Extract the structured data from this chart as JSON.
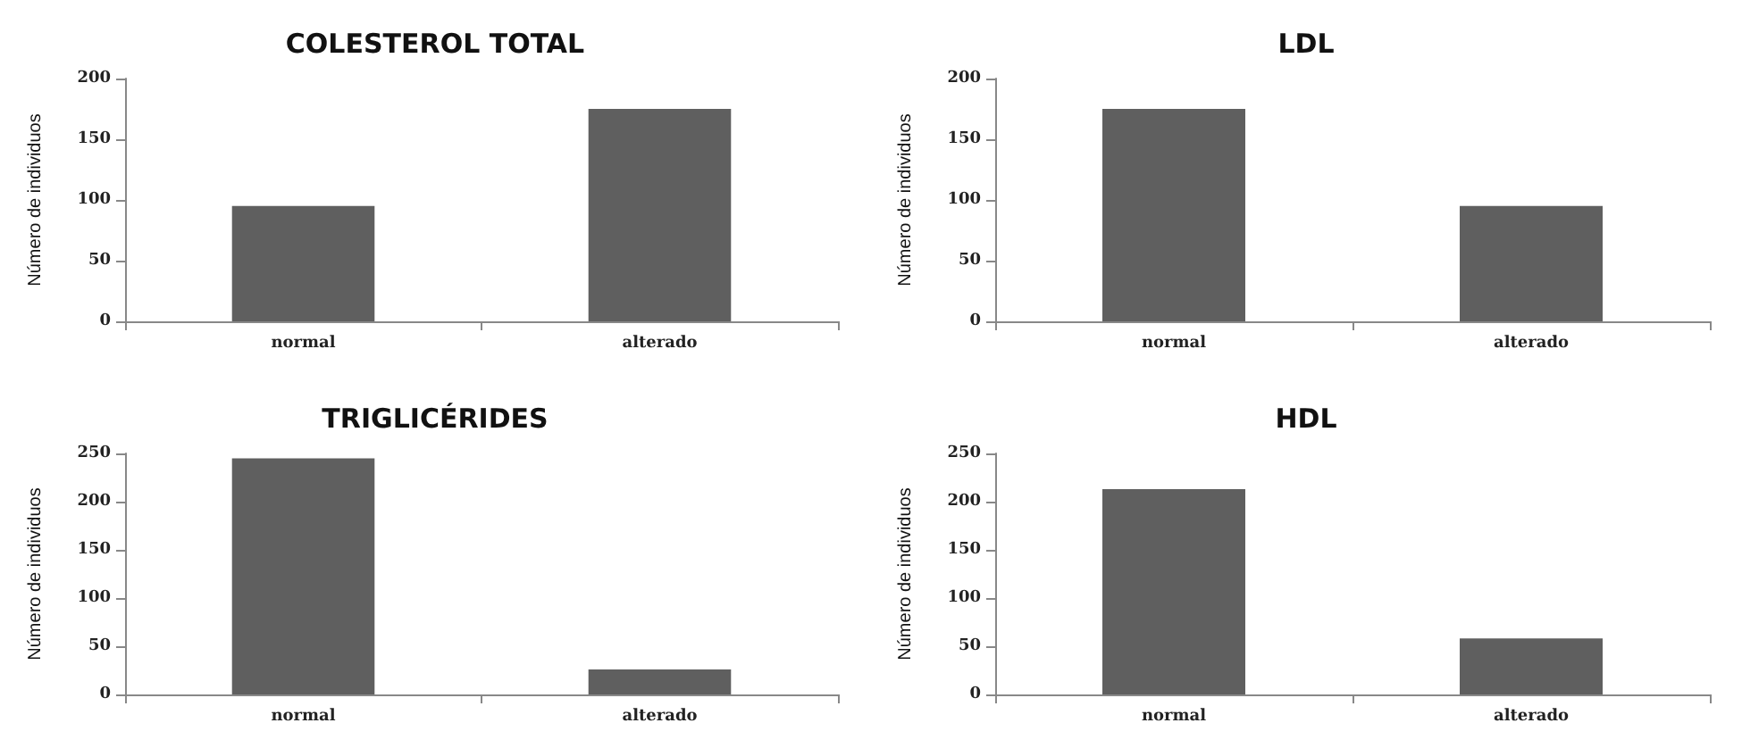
{
  "chart_data": [
    {
      "type": "bar",
      "title": "COLESTEROL TOTAL",
      "ylabel": "Número de individuos",
      "categories": [
        "normal",
        "alterado"
      ],
      "values": [
        95,
        175
      ],
      "color": "#5f5f5f",
      "ylim": [
        0,
        200
      ],
      "yticks": [
        0,
        50,
        100,
        150,
        200
      ],
      "grid": false
    },
    {
      "type": "bar",
      "title": "LDL",
      "ylabel": "Número de individuos",
      "categories": [
        "normal",
        "alterado"
      ],
      "values": [
        175,
        95
      ],
      "color": "#5f5f5f",
      "ylim": [
        0,
        200
      ],
      "yticks": [
        0,
        50,
        100,
        150,
        200
      ],
      "grid": false
    },
    {
      "type": "bar",
      "title": "TRIGLICÉRIDES",
      "ylabel": "Número de individuos",
      "categories": [
        "normal",
        "alterado"
      ],
      "values": [
        245,
        26
      ],
      "color": "#5f5f5f",
      "ylim": [
        0,
        250
      ],
      "yticks": [
        0,
        50,
        100,
        150,
        200,
        250
      ],
      "grid": false
    },
    {
      "type": "bar",
      "title": "HDL",
      "ylabel": "Número de individuos",
      "categories": [
        "normal",
        "alterado"
      ],
      "values": [
        213,
        58
      ],
      "color": "#5f5f5f",
      "ylim": [
        0,
        250
      ],
      "yticks": [
        0,
        50,
        100,
        150,
        200,
        250
      ],
      "grid": false
    }
  ]
}
